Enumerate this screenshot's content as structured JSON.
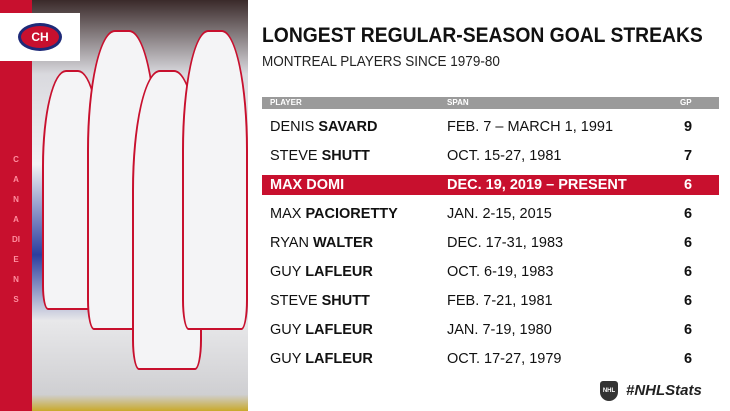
{
  "brand": {
    "team_vertical": "CANADIENS",
    "logo_text": "CH"
  },
  "title": "LONGEST REGULAR-SEASON GOAL STREAKS",
  "subtitle": "MONTREAL PLAYERS SINCE 1979-80",
  "table": {
    "headers": [
      "PLAYER",
      "SPAN",
      "GP"
    ],
    "rows": [
      {
        "first": "DENIS",
        "last": "SAVARD",
        "span": "FEB. 7 – MARCH 1, 1991",
        "gp": "9"
      },
      {
        "first": "STEVE",
        "last": "SHUTT",
        "span": "OCT. 15-27, 1981",
        "gp": "7"
      },
      {
        "first": "MAX",
        "last": "DOMI",
        "span": "DEC. 19, 2019 – PRESENT",
        "gp": "6",
        "highlight": true
      },
      {
        "first": "MAX",
        "last": "PACIORETTY",
        "span": "JAN. 2-15, 2015",
        "gp": "6"
      },
      {
        "first": "RYAN",
        "last": "WALTER",
        "span": "DEC. 17-31, 1983",
        "gp": "6"
      },
      {
        "first": "GUY",
        "last": "LAFLEUR",
        "span": "OCT. 6-19, 1983",
        "gp": "6"
      },
      {
        "first": "STEVE",
        "last": "SHUTT",
        "span": "FEB. 7-21, 1981",
        "gp": "6"
      },
      {
        "first": "GUY",
        "last": "LAFLEUR",
        "span": "JAN. 7-19, 1980",
        "gp": "6"
      },
      {
        "first": "GUY",
        "last": "LAFLEUR",
        "span": "OCT. 17-27, 1979",
        "gp": "6"
      }
    ]
  },
  "footer": {
    "nhl_logo": "NHL",
    "hashtag": "#NHLStats"
  },
  "colors": {
    "accent": "#c8102e",
    "header_bar": "#9a9a9a"
  }
}
